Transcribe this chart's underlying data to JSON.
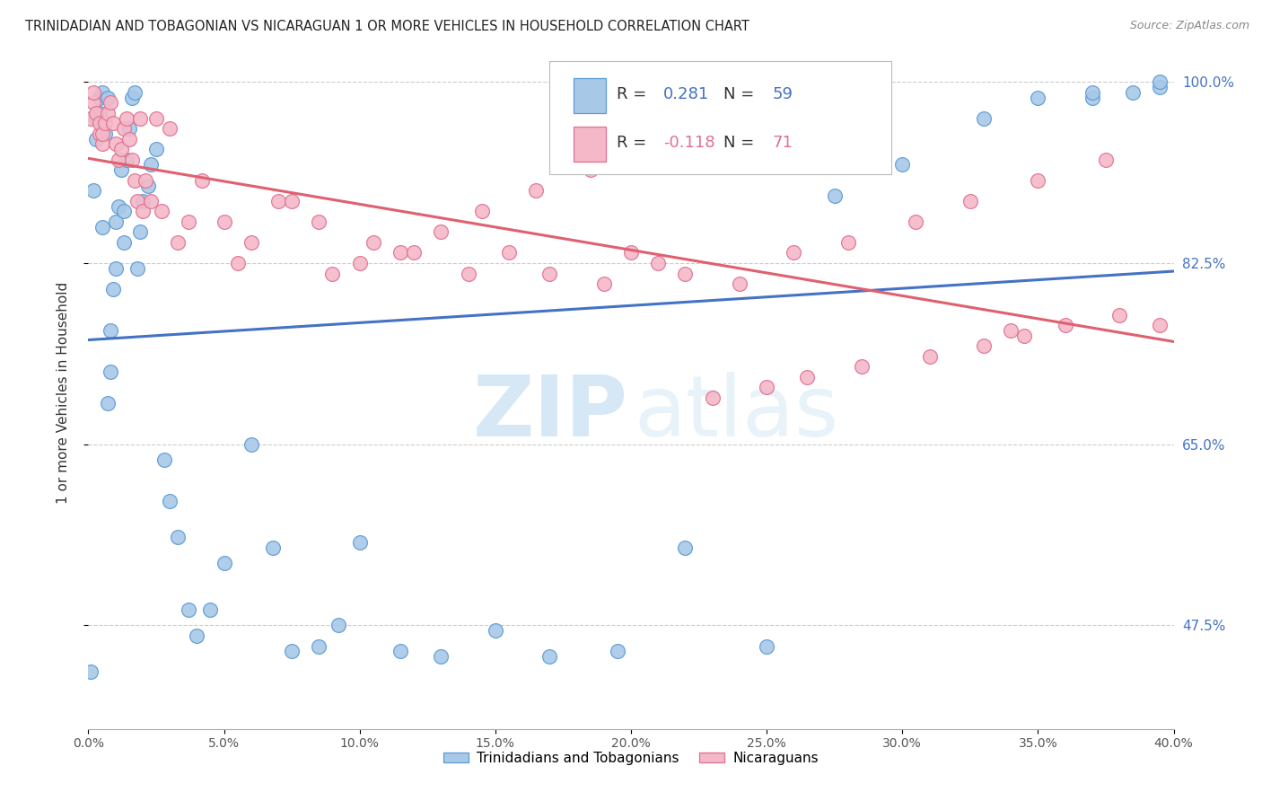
{
  "title": "TRINIDADIAN AND TOBAGONIAN VS NICARAGUAN 1 OR MORE VEHICLES IN HOUSEHOLD CORRELATION CHART",
  "source": "Source: ZipAtlas.com",
  "ylabel": "1 or more Vehicles in Household",
  "legend_label1": "Trinidadians and Tobagonians",
  "legend_label2": "Nicaraguans",
  "R1": 0.281,
  "N1": 59,
  "R2": -0.118,
  "N2": 71,
  "blue_color": "#A8C8E8",
  "blue_edge_color": "#5B9BD5",
  "pink_color": "#F4B8C8",
  "pink_edge_color": "#E07090",
  "blue_line_color": "#4472C4",
  "pink_line_color": "#E06070",
  "watermark_color": "#D6E8F5",
  "right_axis_color": "#4472C4",
  "x_min": 0.0,
  "x_max": 0.4,
  "y_min": 0.375,
  "y_max": 1.025,
  "y_ticks": [
    1.0,
    0.825,
    0.65,
    0.475
  ],
  "x_ticks": [
    0.0,
    0.05,
    0.1,
    0.15,
    0.2,
    0.25,
    0.3,
    0.35,
    0.4
  ],
  "blue_x": [
    0.001,
    0.002,
    0.003,
    0.003,
    0.004,
    0.004,
    0.005,
    0.005,
    0.006,
    0.007,
    0.007,
    0.008,
    0.008,
    0.009,
    0.01,
    0.01,
    0.011,
    0.012,
    0.013,
    0.013,
    0.014,
    0.015,
    0.016,
    0.017,
    0.018,
    0.019,
    0.02,
    0.022,
    0.023,
    0.025,
    0.028,
    0.03,
    0.033,
    0.037,
    0.04,
    0.045,
    0.05,
    0.06,
    0.068,
    0.075,
    0.085,
    0.092,
    0.1,
    0.115,
    0.13,
    0.15,
    0.17,
    0.195,
    0.22,
    0.25,
    0.275,
    0.3,
    0.33,
    0.35,
    0.37,
    0.385,
    0.395,
    0.37,
    0.395
  ],
  "blue_y": [
    0.43,
    0.895,
    0.945,
    0.965,
    0.97,
    0.985,
    0.99,
    0.86,
    0.95,
    0.985,
    0.69,
    0.72,
    0.76,
    0.8,
    0.82,
    0.865,
    0.88,
    0.915,
    0.845,
    0.875,
    0.925,
    0.955,
    0.985,
    0.99,
    0.82,
    0.855,
    0.885,
    0.9,
    0.92,
    0.935,
    0.635,
    0.595,
    0.56,
    0.49,
    0.465,
    0.49,
    0.535,
    0.65,
    0.55,
    0.45,
    0.455,
    0.475,
    0.555,
    0.45,
    0.445,
    0.47,
    0.445,
    0.45,
    0.55,
    0.455,
    0.89,
    0.92,
    0.965,
    0.985,
    0.985,
    0.99,
    0.995,
    0.99,
    1.0
  ],
  "pink_x": [
    0.001,
    0.002,
    0.002,
    0.003,
    0.004,
    0.004,
    0.005,
    0.005,
    0.006,
    0.007,
    0.008,
    0.009,
    0.01,
    0.011,
    0.012,
    0.013,
    0.014,
    0.015,
    0.016,
    0.017,
    0.018,
    0.019,
    0.02,
    0.021,
    0.023,
    0.025,
    0.027,
    0.03,
    0.033,
    0.037,
    0.042,
    0.05,
    0.06,
    0.07,
    0.085,
    0.1,
    0.115,
    0.13,
    0.145,
    0.165,
    0.185,
    0.2,
    0.22,
    0.24,
    0.26,
    0.28,
    0.305,
    0.325,
    0.35,
    0.375,
    0.055,
    0.075,
    0.09,
    0.105,
    0.12,
    0.14,
    0.155,
    0.17,
    0.19,
    0.21,
    0.23,
    0.25,
    0.265,
    0.285,
    0.31,
    0.33,
    0.345,
    0.36,
    0.38,
    0.34,
    0.395
  ],
  "pink_y": [
    0.965,
    0.98,
    0.99,
    0.97,
    0.95,
    0.96,
    0.94,
    0.95,
    0.96,
    0.97,
    0.98,
    0.96,
    0.94,
    0.925,
    0.935,
    0.955,
    0.965,
    0.945,
    0.925,
    0.905,
    0.885,
    0.965,
    0.875,
    0.905,
    0.885,
    0.965,
    0.875,
    0.955,
    0.845,
    0.865,
    0.905,
    0.865,
    0.845,
    0.885,
    0.865,
    0.825,
    0.835,
    0.855,
    0.875,
    0.895,
    0.915,
    0.835,
    0.815,
    0.805,
    0.835,
    0.845,
    0.865,
    0.885,
    0.905,
    0.925,
    0.825,
    0.885,
    0.815,
    0.845,
    0.835,
    0.815,
    0.835,
    0.815,
    0.805,
    0.825,
    0.695,
    0.705,
    0.715,
    0.725,
    0.735,
    0.745,
    0.755,
    0.765,
    0.775,
    0.76,
    0.765
  ]
}
